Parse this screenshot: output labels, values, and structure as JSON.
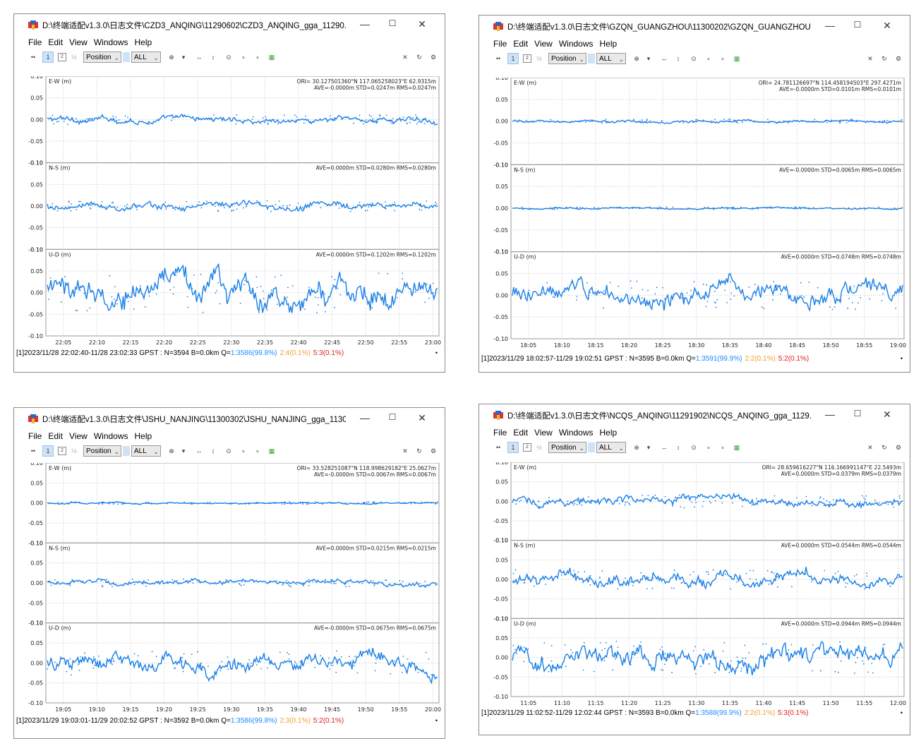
{
  "colors": {
    "data": "#1a7fe6",
    "grid": "#c8c8c8",
    "frame": "#9a9a9a",
    "q1": "#1a8cff",
    "q2": "#f0a030",
    "q5": "#e02020"
  },
  "windows": [
    {
      "title": "D:\\终端适配v1.3.0\\日志文件\\CZD3_ANQING\\11290602\\CZD3_ANQING_gga_11290...",
      "menu": [
        "File",
        "Edit",
        "View",
        "Windows",
        "Help"
      ],
      "toolbar": {
        "plot_type": "Position",
        "filter": "ALL"
      },
      "status": {
        "prefix": "[1]2023/11/28 22:02:40-11/28 23:02:33 GPST : N=3594 B=0.0km Q=",
        "q1": "1:3586(99.8%)",
        "q2": "2:4(0.1%)",
        "q5": "5:3(0.1%)"
      },
      "chart_data": {
        "type": "scatter",
        "x_ticks": [
          "22:05",
          "22:10",
          "22:15",
          "22:20",
          "22:25",
          "22:30",
          "22:35",
          "22:40",
          "22:45",
          "22:50",
          "22:55",
          "23:00"
        ],
        "y_ticks": [
          "0.10",
          "0.05",
          "0.00",
          "-0.05",
          "-0.10"
        ],
        "ylim": [
          -0.1,
          0.1
        ],
        "panels": [
          {
            "label": "E-W (m)",
            "ori": "ORI= 30.127501360°N  117.065258023°E 62.9315m",
            "stats": "AVE=-0.0000m STD=0.0247m RMS=0.0247m",
            "std": 0.0247
          },
          {
            "label": "N-S (m)",
            "ori": "",
            "stats": "AVE=0.0000m STD=0.0280m RMS=0.0280m",
            "std": 0.028
          },
          {
            "label": "U-D (m)",
            "ori": "",
            "stats": "AVE=0.0000m STD=0.1202m RMS=0.1202m",
            "std": 0.1202
          }
        ]
      }
    },
    {
      "title": "D:\\终端适配v1.3.0\\日志文件\\GZQN_GUANGZHOU\\11300202\\GZQN_GUANGZHOU...",
      "menu": [
        "File",
        "Edit",
        "View",
        "Windows",
        "Help"
      ],
      "toolbar": {
        "plot_type": "Position",
        "filter": "ALL"
      },
      "status": {
        "prefix": "[1]2023/11/29 18:02:57-11/29 19:02:51 GPST : N=3595 B=0.0km Q=",
        "q1": "1:3591(99.9%)",
        "q2": "2:2(0.1%)",
        "q5": "5:2(0.1%)"
      },
      "chart_data": {
        "type": "scatter",
        "x_ticks": [
          "18:05",
          "18:10",
          "18:15",
          "18:20",
          "18:25",
          "18:30",
          "18:35",
          "18:40",
          "18:45",
          "18:50",
          "18:55",
          "19:00"
        ],
        "y_ticks": [
          "0.10",
          "0.05",
          "0.00",
          "-0.05",
          "-0.10"
        ],
        "ylim": [
          -0.1,
          0.1
        ],
        "panels": [
          {
            "label": "E-W (m)",
            "ori": "ORI= 24.781126697°N  114.458194503°E 297.4271m",
            "stats": "AVE=-0.0000m STD=0.0101m RMS=0.0101m",
            "std": 0.0101
          },
          {
            "label": "N-S (m)",
            "ori": "",
            "stats": "AVE=-0.0000m STD=0.0065m RMS=0.0065m",
            "std": 0.0065
          },
          {
            "label": "U-D (m)",
            "ori": "",
            "stats": "AVE=0.0000m STD=0.0748m RMS=0.0748m",
            "std": 0.0748
          }
        ]
      }
    },
    {
      "title": "D:\\终端适配v1.3.0\\日志文件\\JSHU_NANJING\\11300302\\JSHU_NANJING_gga_1130...",
      "menu": [
        "File",
        "Edit",
        "View",
        "Windows",
        "Help"
      ],
      "toolbar": {
        "plot_type": "Position",
        "filter": "ALL"
      },
      "status": {
        "prefix": "[1]2023/11/29 19:03:01-11/29 20:02:52 GPST : N=3592 B=0.0km Q=",
        "q1": "1:3586(99.8%)",
        "q2": "2:3(0.1%)",
        "q5": "5:2(0.1%)"
      },
      "chart_data": {
        "type": "scatter",
        "x_ticks": [
          "19:05",
          "19:10",
          "19:15",
          "19:20",
          "19:25",
          "19:30",
          "19:35",
          "19:40",
          "19:45",
          "19:50",
          "19:55",
          "20:00"
        ],
        "y_ticks": [
          "0.10",
          "0.05",
          "0.00",
          "-0.05",
          "-0.10"
        ],
        "ylim": [
          -0.1,
          0.1
        ],
        "panels": [
          {
            "label": "E-W (m)",
            "ori": "ORI= 33.528251087°N  118.998629182°E 25.0627m",
            "stats": "AVE=-0.0000m STD=0.0067m RMS=0.0067m",
            "std": 0.0067
          },
          {
            "label": "N-S (m)",
            "ori": "",
            "stats": "AVE=0.0000m STD=0.0215m RMS=0.0215m",
            "std": 0.0215
          },
          {
            "label": "U-D (m)",
            "ori": "",
            "stats": "AVE=-0.0000m STD=0.0675m RMS=0.0675m",
            "std": 0.0675
          }
        ]
      }
    },
    {
      "title": "D:\\终端适配v1.3.0\\日志文件\\NCQS_ANQING\\11291902\\NCQS_ANQING_gga_1129...",
      "menu": [
        "File",
        "Edit",
        "View",
        "Windows",
        "Help"
      ],
      "toolbar": {
        "plot_type": "Position",
        "filter": "ALL"
      },
      "status": {
        "prefix": "[1]2023/11/29 11:02:52-11/29 12:02:44 GPST : N=3593 B=0.0km Q=",
        "q1": "1:3588(99.9%)",
        "q2": "2:2(0.1%)",
        "q5": "5:3(0.1%)"
      },
      "chart_data": {
        "type": "scatter",
        "x_ticks": [
          "11:05",
          "11:10",
          "11:15",
          "11:20",
          "11:25",
          "11:30",
          "11:35",
          "11:40",
          "11:45",
          "11:50",
          "11:55",
          "12:00"
        ],
        "y_ticks": [
          "0.10",
          "0.05",
          "0.00",
          "-0.05",
          "-0.10"
        ],
        "ylim": [
          -0.1,
          0.1
        ],
        "panels": [
          {
            "label": "E-W (m)",
            "ori": "ORI= 28.659616227°N  116.166991147°E 22.5493m",
            "stats": "AVE=0.0000m STD=0.0379m RMS=0.0379m",
            "std": 0.0379
          },
          {
            "label": "N-S (m)",
            "ori": "",
            "stats": "AVE=0.0000m STD=0.0544m RMS=0.0544m",
            "std": 0.0544
          },
          {
            "label": "U-D (m)",
            "ori": "",
            "stats": "AVE=0.0000m STD=0.0944m RMS=0.0944m",
            "std": 0.0944
          }
        ]
      }
    }
  ]
}
